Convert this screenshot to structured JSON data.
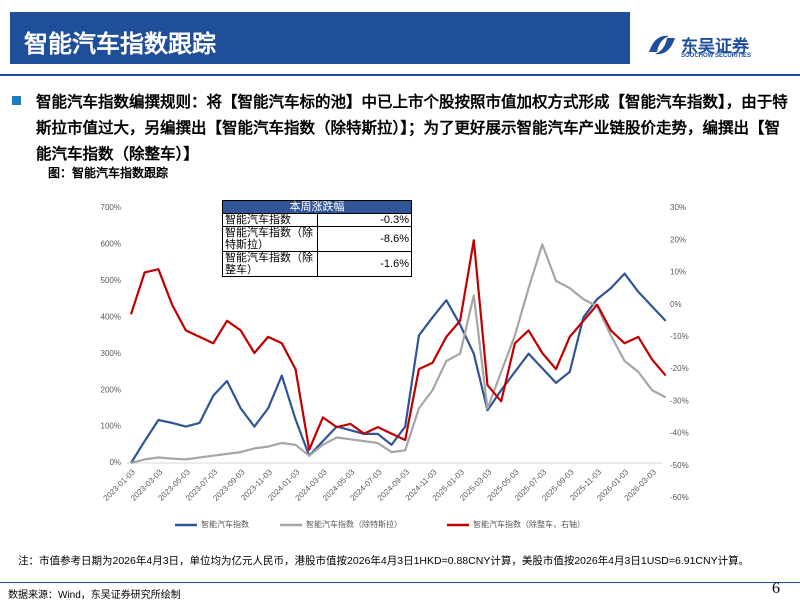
{
  "header": {
    "title": "智能汽车指数跟踪",
    "logo_name": "东吴证券",
    "logo_sub": "SOOCHOW SECURITIES"
  },
  "text": "智能汽车指数编撰规则：将【智能汽车标的池】中已上市个股按照市值加权方式形成【智能汽车指数】，由于特斯拉市值过大，另编撰出【智能汽车指数（除特斯拉）】；为了更好展示智能汽车产业链股价走势，编撰出【智能汽车指数（除整车）】",
  "caption": "图：智能汽车指数跟踪",
  "chart_data": {
    "type": "line",
    "categories": [
      "2023-01-03",
      null,
      "2023-03-03",
      null,
      "2023-05-03",
      null,
      "2023-07-03",
      null,
      "2023-09-03",
      null,
      "2023-11-03",
      null,
      "2024-01-03",
      null,
      "2024-03-03",
      null,
      "2024-05-03",
      null,
      "2024-07-03",
      null,
      "2024-09-03",
      null,
      "2024-11-03",
      null,
      "2025-01-03",
      null,
      "2025-03-03",
      null,
      "2025-05-03",
      null,
      "2025-07-03",
      null,
      "2025-09-03",
      null,
      "2025-11-03",
      null,
      "2026-01-03",
      null,
      "2026-03-03",
      null
    ],
    "ylim": [
      0,
      700
    ],
    "yticks": [
      {
        "value": 0,
        "label": "0%"
      },
      {
        "value": 100,
        "label": "100%"
      },
      {
        "value": 200,
        "label": "200%"
      },
      {
        "value": 300,
        "label": "300%"
      },
      {
        "value": 400,
        "label": "400%"
      },
      {
        "value": 500,
        "label": "500%"
      },
      {
        "value": 600,
        "label": "600%"
      },
      {
        "value": 700,
        "label": "700%"
      }
    ],
    "y2lim": [
      -60,
      30
    ],
    "y2ticks": [
      {
        "value": -60,
        "label": "-60%"
      },
      {
        "value": -50,
        "label": "-50%"
      },
      {
        "value": -40,
        "label": "-40%"
      },
      {
        "value": -30,
        "label": "-30%"
      },
      {
        "value": -20,
        "label": "-20%"
      },
      {
        "value": -10,
        "label": "-10%"
      },
      {
        "value": 0,
        "label": "0%"
      },
      {
        "value": 10,
        "label": "10%"
      },
      {
        "value": 20,
        "label": "20%"
      },
      {
        "value": 30,
        "label": "30%"
      }
    ],
    "series": [
      {
        "name": "智能汽车指数",
        "color": "#2f5597",
        "values": [
          0,
          60,
          118,
          110,
          100,
          110,
          185,
          225,
          150,
          100,
          150,
          240,
          120,
          20,
          60,
          100,
          90,
          80,
          80,
          50,
          100,
          350,
          400,
          447,
          380,
          300,
          145,
          200,
          250,
          300,
          260,
          220,
          250,
          400,
          450,
          480,
          520,
          470,
          430,
          390
        ]
      },
      {
        "name": "智能汽车指数（除特斯拉）",
        "color": "#a6a6a6",
        "values": [
          0,
          10,
          15,
          12,
          10,
          15,
          20,
          25,
          30,
          40,
          45,
          55,
          50,
          20,
          50,
          70,
          65,
          60,
          55,
          30,
          35,
          150,
          200,
          280,
          300,
          460,
          150,
          250,
          350,
          480,
          600,
          500,
          480,
          450,
          430,
          350,
          280,
          250,
          200,
          180
        ]
      },
      {
        "name": "智能汽车指数（除整车，右轴）",
        "color": "#c00000",
        "axis": "y2",
        "values": [
          -3,
          10,
          11,
          0,
          -8,
          -10,
          -12,
          -5,
          -8,
          -15,
          -10,
          -12,
          -20,
          -45,
          -35,
          -38,
          -37,
          -40,
          -38,
          -40,
          -42,
          -20,
          -18,
          -10,
          -5,
          20,
          -25,
          -30,
          -12,
          -8,
          -15,
          -20,
          -10,
          -5,
          0,
          -8,
          -12,
          -10,
          -17,
          -22
        ]
      }
    ]
  },
  "table": {
    "header": "本周涨跌幅",
    "rows": [
      [
        "智能汽车指数",
        "-0.3%"
      ],
      [
        "智能汽车指数（除特斯拉）",
        "-8.6%"
      ],
      [
        "智能汽车指数（除整车）",
        "-1.6%"
      ]
    ]
  },
  "note": "注：市值参考日期为2026年4月3日，单位均为亿元人民币，港股市值按2026年4月3日1HKD=0.88CNY计算，美股市值按2026年4月3日1USD=6.91CNY计算。",
  "source": "数据来源：Wind，东吴证券研究所绘制",
  "page": "6"
}
